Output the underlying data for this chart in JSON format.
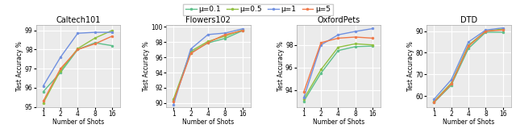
{
  "shots": [
    1,
    2,
    4,
    8,
    16
  ],
  "datasets": {
    "Caltech101": {
      "ylim": [
        95,
        99.3
      ],
      "yticks": [
        95,
        96,
        97,
        98,
        99
      ],
      "series": {
        "mu0.1": [
          95.8,
          96.8,
          98.0,
          98.35,
          98.2
        ],
        "mu0.5": [
          95.2,
          96.9,
          98.05,
          98.6,
          99.0
        ],
        "mu1": [
          96.1,
          97.6,
          98.85,
          98.9,
          98.9
        ],
        "mu5": [
          95.3,
          97.0,
          98.0,
          98.3,
          98.7
        ]
      }
    },
    "Flowers102": {
      "ylim": [
        89.5,
        100.3
      ],
      "yticks": [
        90,
        92,
        94,
        96,
        98,
        100
      ],
      "series": {
        "mu0.1": [
          90.3,
          96.6,
          97.9,
          98.5,
          99.5
        ],
        "mu0.5": [
          90.5,
          96.8,
          98.1,
          98.8,
          99.6
        ],
        "mu1": [
          89.8,
          97.1,
          99.0,
          99.2,
          99.75
        ],
        "mu5": [
          90.2,
          96.5,
          97.95,
          99.0,
          99.5
        ]
      }
    },
    "OxfordPets": {
      "ylim": [
        92.5,
        99.8
      ],
      "yticks": [
        94,
        96,
        98
      ],
      "series": {
        "mu0.1": [
          93.0,
          95.5,
          97.5,
          97.85,
          97.9
        ],
        "mu0.5": [
          93.2,
          95.8,
          97.8,
          98.1,
          98.0
        ],
        "mu1": [
          93.3,
          98.0,
          98.9,
          99.2,
          99.45
        ],
        "mu5": [
          93.8,
          98.2,
          98.6,
          98.7,
          98.6
        ]
      }
    },
    "DTD": {
      "ylim": [
        55,
        93
      ],
      "yticks": [
        60,
        70,
        80,
        90
      ],
      "series": {
        "mu0.1": [
          57.0,
          65.0,
          82.0,
          89.5,
          89.5
        ],
        "mu0.5": [
          57.5,
          66.0,
          83.5,
          90.0,
          91.0
        ],
        "mu1": [
          58.5,
          67.5,
          85.0,
          90.5,
          91.5
        ],
        "mu5": [
          57.2,
          65.5,
          83.0,
          90.0,
          90.5
        ]
      }
    }
  },
  "series_styles": {
    "mu0.1": {
      "color": "#5dbf8a",
      "label": "μ=0.1"
    },
    "mu0.5": {
      "color": "#90c040",
      "label": "μ=0.5"
    },
    "mu1": {
      "color": "#7090e0",
      "label": "μ=1"
    },
    "mu5": {
      "color": "#f07848",
      "label": "μ=5"
    }
  },
  "xlabel": "Number of Shots",
  "ylabel": "Test Accuracy %",
  "background_color": "#ebebeb",
  "grid_color": "white"
}
